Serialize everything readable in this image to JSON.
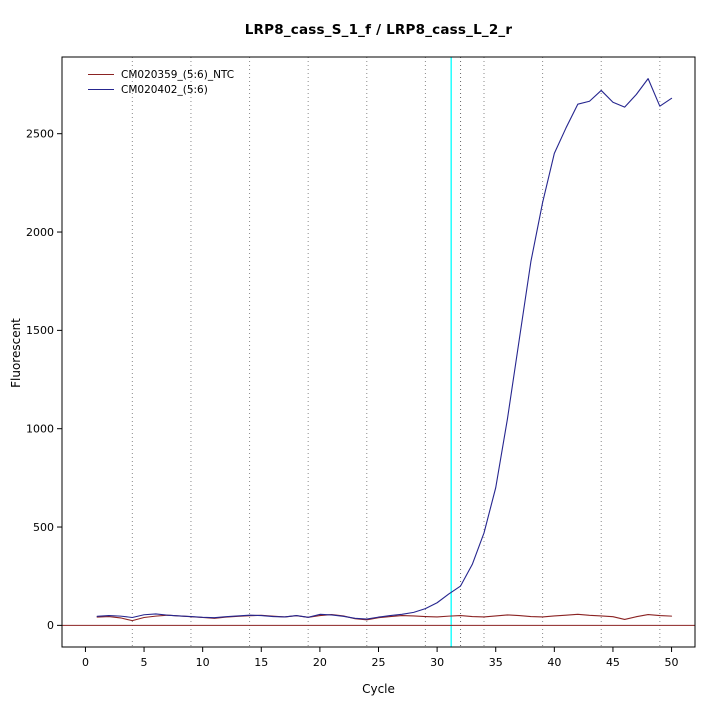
{
  "title": "LRP8_cass_S_1_f / LRP8_cass_L_2_r",
  "chart_data": {
    "type": "line",
    "title": "LRP8_cass_S_1_f / LRP8_cass_L_2_r",
    "xlabel": "Cycle",
    "ylabel": "Fluorescent",
    "xlim": [
      -2,
      52
    ],
    "ylim": [
      -110,
      2890
    ],
    "x_ticks": [
      0,
      5,
      10,
      15,
      20,
      25,
      30,
      35,
      40,
      45,
      50
    ],
    "y_ticks": [
      0,
      500,
      1000,
      1500,
      2000,
      2500
    ],
    "grid_x_dotted": [
      4,
      9,
      14,
      19,
      24,
      29,
      34,
      39,
      44,
      49
    ],
    "extra_dotted_x": 32,
    "threshold_line_x": 31.2,
    "baseline_y": 0,
    "grid_on": true,
    "legend_position": "top-left",
    "x": [
      1,
      2,
      3,
      4,
      5,
      6,
      7,
      8,
      9,
      10,
      11,
      12,
      13,
      14,
      15,
      16,
      17,
      18,
      19,
      20,
      21,
      22,
      23,
      24,
      25,
      26,
      27,
      28,
      29,
      30,
      31,
      32,
      33,
      34,
      35,
      36,
      37,
      38,
      39,
      40,
      41,
      42,
      43,
      44,
      45,
      46,
      47,
      48,
      49,
      50
    ],
    "series": [
      {
        "name": "CM020359_(5:6)_NTC",
        "color": "#8b2323",
        "values": [
          42,
          45,
          38,
          24,
          40,
          47,
          52,
          48,
          44,
          40,
          36,
          42,
          46,
          49,
          51,
          47,
          43,
          49,
          41,
          50,
          55,
          48,
          34,
          28,
          39,
          45,
          50,
          48,
          45,
          43,
          47,
          50,
          45,
          43,
          48,
          53,
          50,
          45,
          43,
          48,
          52,
          56,
          51,
          48,
          44,
          30,
          44,
          55,
          50,
          47
        ]
      },
      {
        "name": "CM020402_(5:6)",
        "color": "#26268f",
        "values": [
          46,
          50,
          47,
          40,
          54,
          58,
          52,
          48,
          45,
          41,
          39,
          44,
          48,
          52,
          50,
          45,
          43,
          50,
          41,
          56,
          53,
          46,
          36,
          32,
          42,
          50,
          56,
          66,
          85,
          115,
          160,
          200,
          310,
          470,
          700,
          1050,
          1450,
          1850,
          2150,
          2400,
          2530,
          2650,
          2665,
          2720,
          2660,
          2635,
          2700,
          2780,
          2640,
          2680
        ]
      }
    ],
    "colors": {
      "threshold": "#00ffff",
      "grid": "#8a8a8a",
      "extra_dotted": "#666666",
      "baseline": "#8b2323",
      "box": "#000000"
    }
  }
}
